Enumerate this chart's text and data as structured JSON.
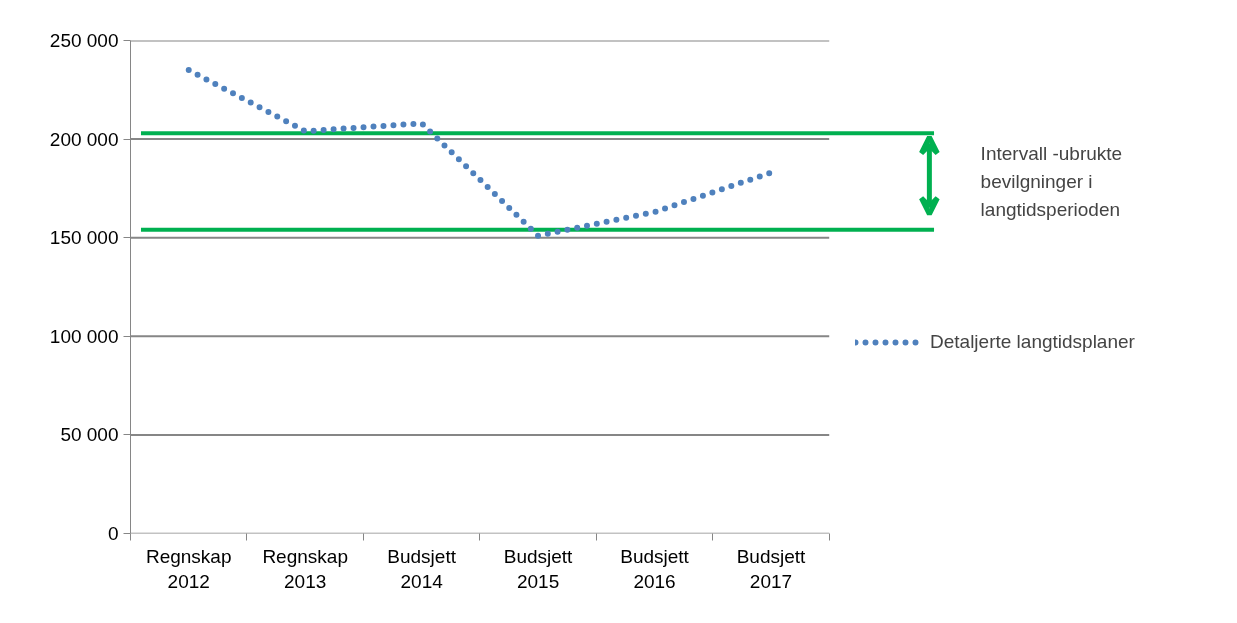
{
  "chart_data": {
    "type": "line",
    "categories": [
      "Regnskap\n2012",
      "Regnskap\n2013",
      "Budsjett\n2014",
      "Budsjett\n2015",
      "Budsjett\n2016",
      "Budsjett\n2017"
    ],
    "series": [
      {
        "name": "Detaljerte langtidsplaner",
        "color": "#4f81bd",
        "line_style": "dotted",
        "values": [
          235000,
          204000,
          208000,
          151000,
          163000,
          183000
        ]
      }
    ],
    "ylim": [
      0,
      250000
    ],
    "yticks": [
      {
        "value": 0,
        "label": "0"
      },
      {
        "value": 50000,
        "label": "50 000"
      },
      {
        "value": 100000,
        "label": "100 000"
      },
      {
        "value": 150000,
        "label": "150 000"
      },
      {
        "value": 200000,
        "label": "200 000"
      },
      {
        "value": 250000,
        "label": "250 000"
      }
    ],
    "grid": "y",
    "legend": "right",
    "ref_lines": [
      {
        "axis": "y",
        "value": 203000,
        "color": "#00b050"
      },
      {
        "axis": "y",
        "value": 154000,
        "color": "#00b050"
      }
    ],
    "annotations": [
      "Intervall -ubrukte\nbevilgninger i\nlangtidsperioden"
    ]
  }
}
